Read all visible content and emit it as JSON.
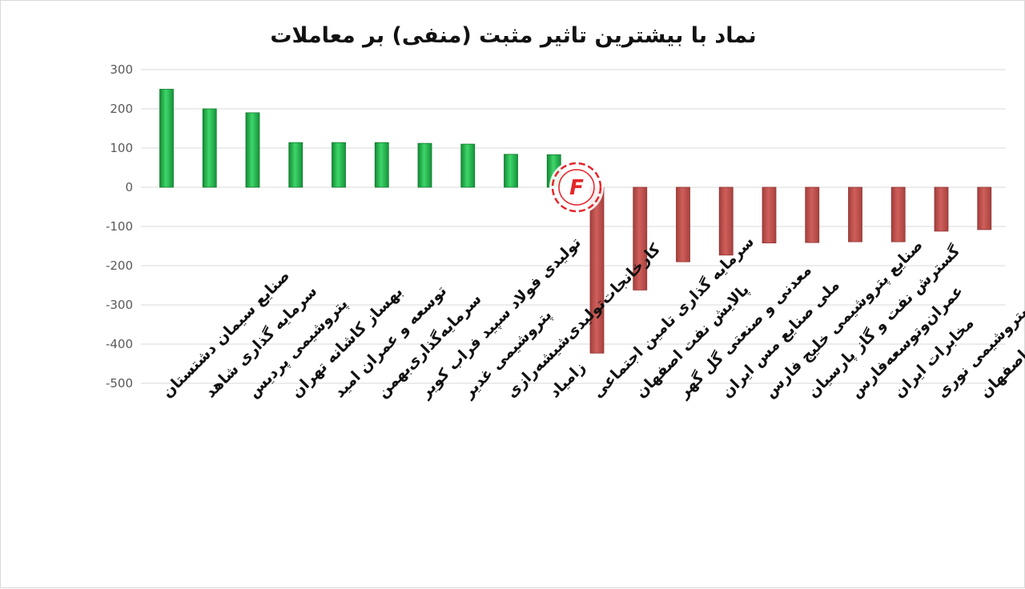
{
  "chart_data": {
    "type": "bar",
    "title": "نماد با بیشترین تاثیر مثبت (منفی) بر معاملات",
    "xlabel": "",
    "ylabel": "",
    "ylim": [
      -500,
      300
    ],
    "y_ticks": [
      300,
      200,
      100,
      0,
      -100,
      -200,
      -300,
      -400,
      -500
    ],
    "y_tick_labels": [
      "300",
      "200",
      "100",
      "0",
      "-100",
      "-200",
      "-300",
      "-400",
      "-500"
    ],
    "grid": true,
    "legend": "none",
    "positive_color": "#1fb24a",
    "negative_color": "#c0504d",
    "categories": [
      "صنایع سیمان دشتستان",
      "سرمایه گذاری شاهد",
      "پتروشیمی پردیس",
      "بهساز کاشانه تهران",
      "توسعه و عمران امید",
      "سرمایه‌گذاری‌بهمن",
      "تولیدی فولاد سپید فراب کویر",
      "پتروشیمی غدیر",
      "کارخانجات‌تولیدی‌شیشه‌رازی",
      "زامیاد",
      "سرمایه گذاری تامین اجتماعی",
      "پالایش نفت اصفهان",
      "معدنی و صنعتی گل گهر",
      "ملی صنایع مس ایران",
      "صنایع پتروشیمی خلیج فارس",
      "گسترش نفت و گاز پارسیان",
      "عمران‌وتوسعه‌فارس",
      "مخابرات ایران",
      "پتروشیمی نوری",
      "ذوب آهن اصفهان"
    ],
    "values": [
      250,
      200,
      190,
      114,
      114,
      114,
      112,
      110,
      84,
      83,
      -423,
      -262,
      -190,
      -173,
      -142,
      -141,
      -139,
      -139,
      -112,
      -108
    ]
  }
}
